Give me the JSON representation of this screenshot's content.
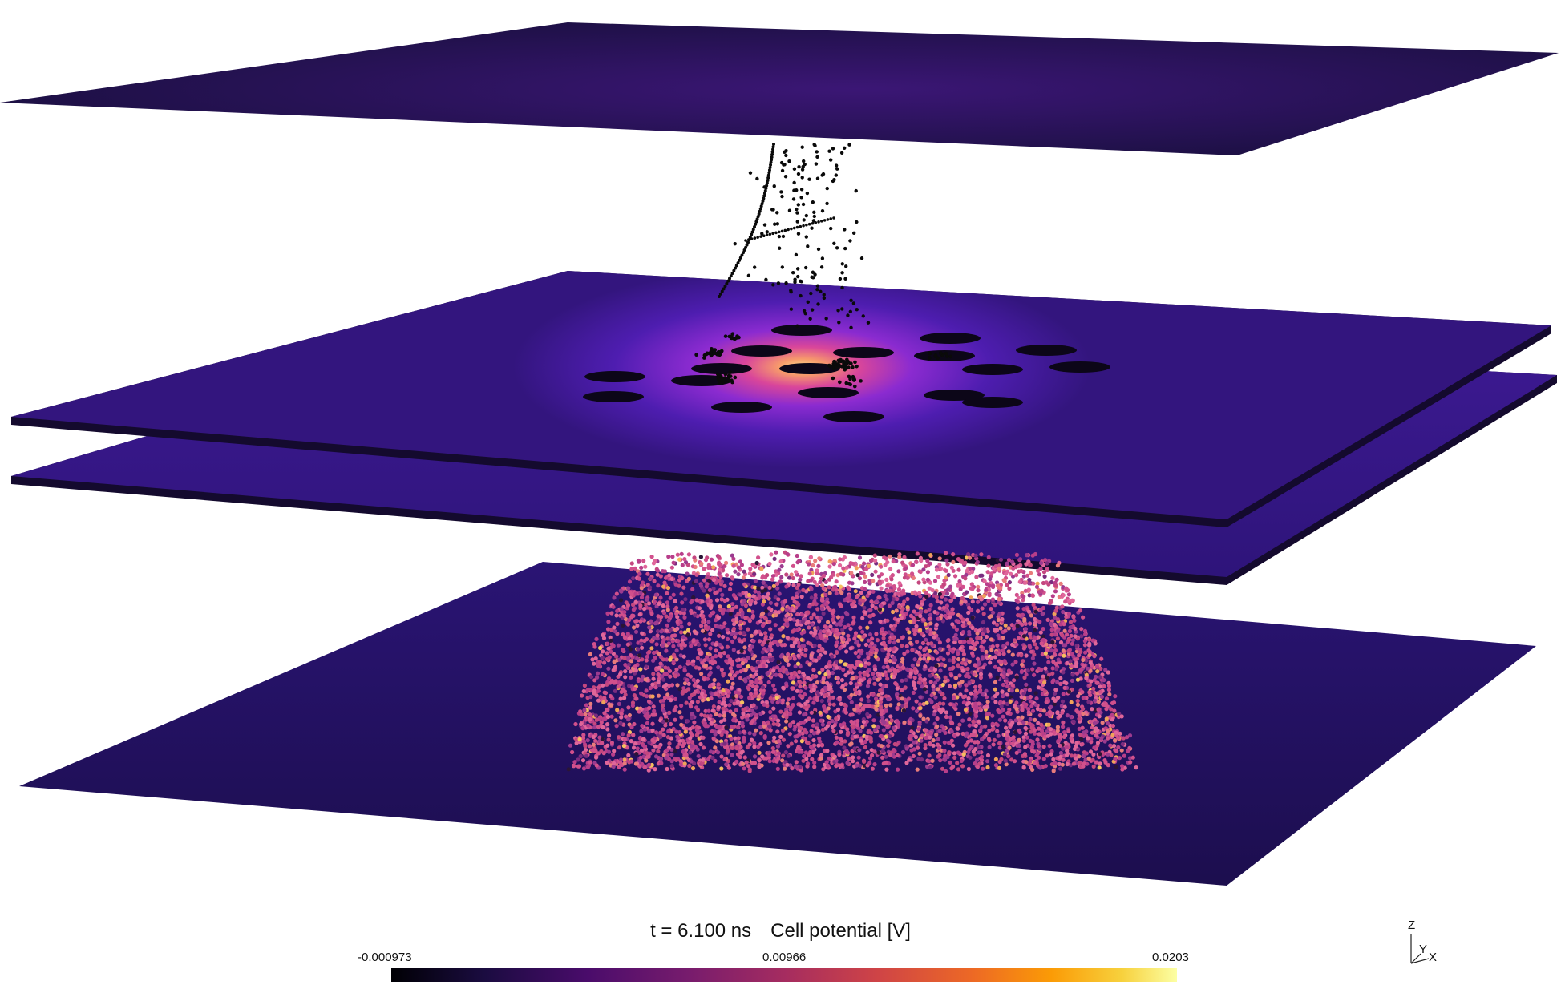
{
  "caption": {
    "time": "t = 6.100 ns",
    "quantity": "Cell potential [V]"
  },
  "colorbar": {
    "min_label": "-0.000973",
    "mid_label": "0.00966",
    "max_label": "0.0203",
    "colormap": "magma"
  },
  "axes_triad": {
    "z": "Z",
    "y": "Y",
    "x": "X"
  },
  "colors": {
    "plate_dark": "#1c1040",
    "plate_mid": "#3a1a80",
    "glow_center": "#fcc46a",
    "particle_pink": "#d94f8a",
    "background": "#ffffff"
  }
}
